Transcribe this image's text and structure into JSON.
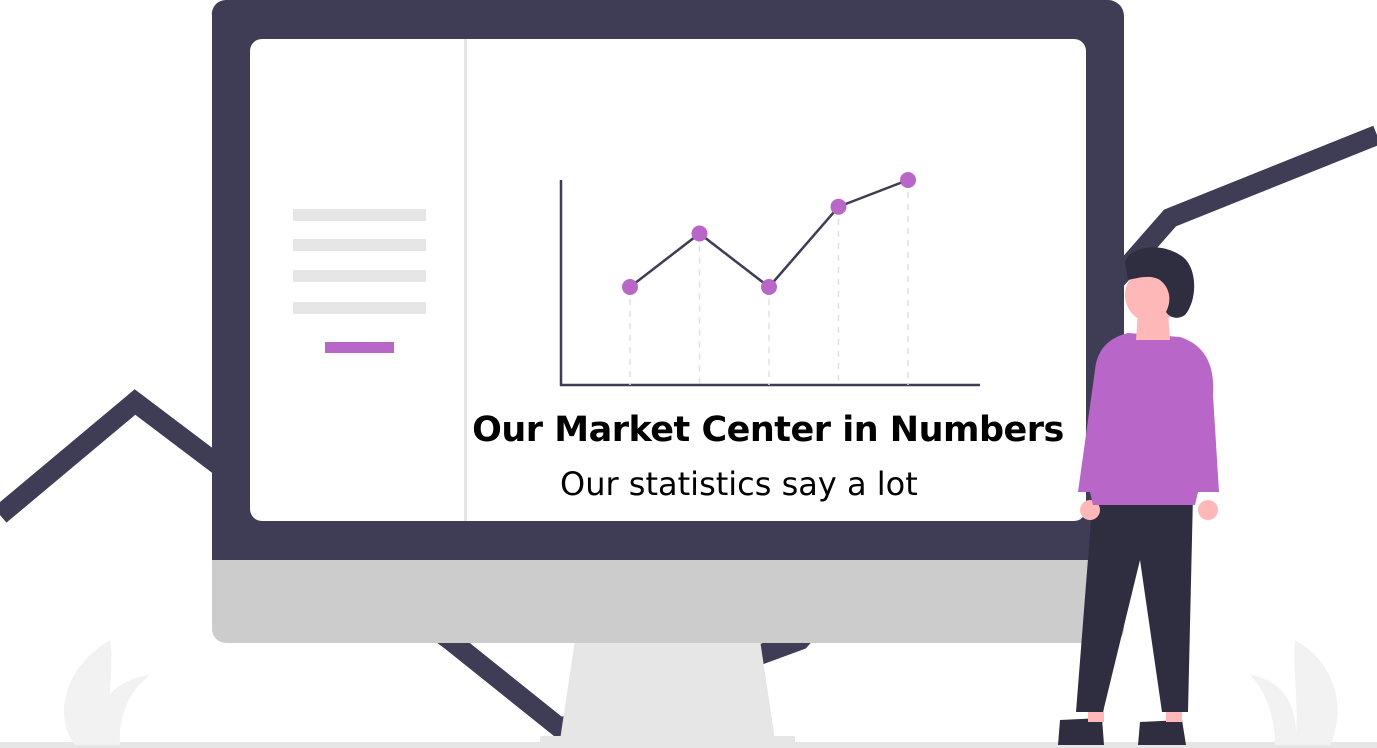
{
  "title": "Our Market Center in Numbers",
  "subtitle": "Our statistics say a lot",
  "colors": {
    "monitor_frame": "#3f3d56",
    "monitor_chin": "#cccccc",
    "screen": "#ffffff",
    "accent": "#b866c8",
    "skin": "#ffb8b8",
    "hair": "#2f2e41",
    "pants": "#2f2e41",
    "sidebar_lines": "#e6e6e6",
    "leaf": "#f2f2f2"
  },
  "illustration_chart": {
    "type": "line",
    "points": [
      2,
      4,
      2,
      5,
      6
    ]
  }
}
